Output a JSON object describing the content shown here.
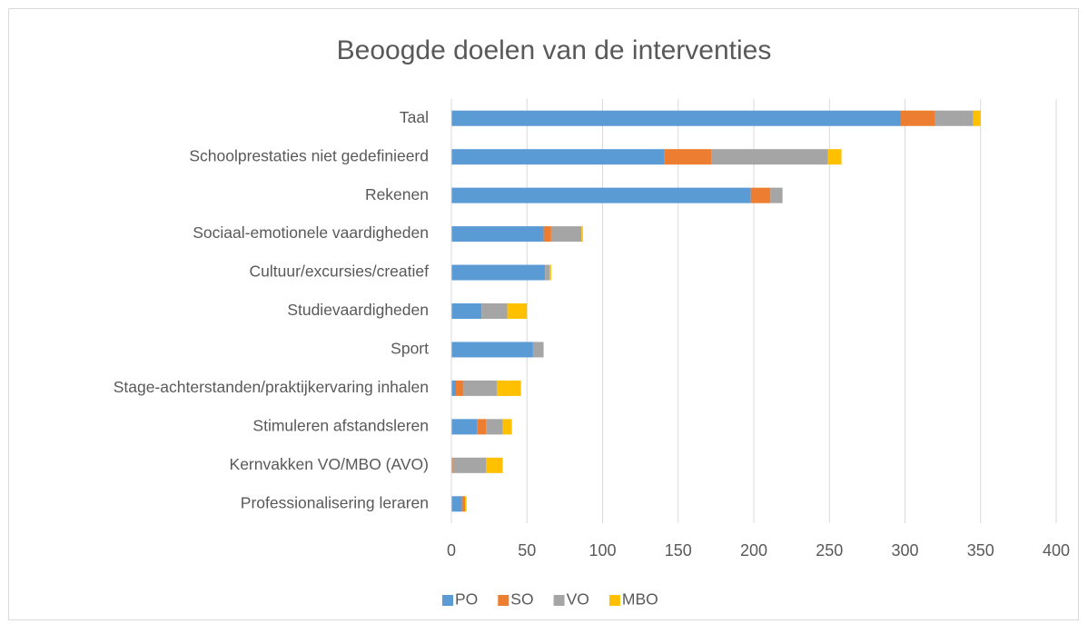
{
  "chart_data": {
    "type": "stacked-bar-horizontal",
    "title": "Beoogde doelen van de interventies",
    "categories": [
      "Taal",
      "Schoolprestaties niet gedefinieerd",
      "Rekenen",
      "Sociaal-emotionele vaardigheden",
      "Cultuur/excursies/creatief",
      "Studievaardigheden",
      "Sport",
      "Stage-achterstanden/praktijkervaring inhalen",
      "Stimuleren afstandsleren",
      "Kernvakken VO/MBO (AVO)",
      "Professionalisering leraren"
    ],
    "series": [
      {
        "name": "PO",
        "color": "#5b9bd5",
        "values": [
          297,
          141,
          198,
          61,
          62,
          20,
          54,
          3,
          17,
          0,
          7
        ]
      },
      {
        "name": "SO",
        "color": "#ed7d31",
        "values": [
          23,
          31,
          13,
          5,
          0,
          0,
          0,
          5,
          6,
          1,
          2
        ]
      },
      {
        "name": "VO",
        "color": "#a5a5a5",
        "values": [
          25,
          77,
          8,
          20,
          3,
          17,
          7,
          22,
          11,
          22,
          0
        ]
      },
      {
        "name": "MBO",
        "color": "#ffc000",
        "values": [
          5,
          9,
          0,
          1,
          1,
          13,
          0,
          16,
          6,
          11,
          1
        ]
      }
    ],
    "xlim": [
      0,
      400
    ],
    "xticks": [
      0,
      50,
      100,
      150,
      200,
      250,
      300,
      350,
      400
    ],
    "grid": true,
    "legend": "bottom"
  }
}
